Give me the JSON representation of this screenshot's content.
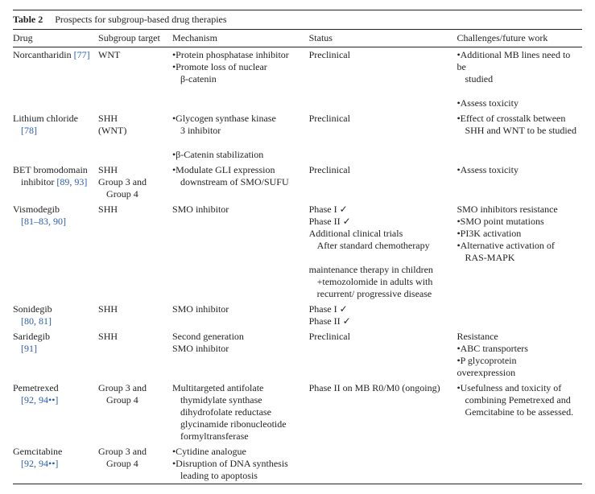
{
  "table": {
    "label": "Table 2",
    "caption": "Prospects for subgroup-based drug therapies",
    "columns": [
      "Drug",
      "Subgroup target",
      "Mechanism",
      "Status",
      "Challenges/future work"
    ],
    "rows": [
      {
        "drug_name": "Norcantharidin",
        "drug_refs": "[77]",
        "subgroup": [
          "WNT"
        ],
        "mechanism": [
          "•Protein phosphatase inhibitor",
          "•Promote loss of nuclear",
          " β-catenin"
        ],
        "status": [
          "Preclinical"
        ],
        "challenges": [
          "•Additional MB lines need to be",
          " studied",
          "•Assess toxicity"
        ]
      },
      {
        "drug_name": "Lithium chloride",
        "drug_refs": "[78]",
        "subgroup": [
          "SHH",
          "(WNT)"
        ],
        "mechanism": [
          "•Glycogen synthase kinase",
          " 3 inhibitor",
          "•β-Catenin stabilization"
        ],
        "status": [
          "Preclinical"
        ],
        "challenges": [
          "•Effect of crosstalk between",
          " SHH and WNT to be studied"
        ]
      },
      {
        "drug_name": "BET bromodomain inhibitor",
        "drug_refs": "[89, 93]",
        "subgroup": [
          "SHH",
          "Group 3 and",
          " Group 4"
        ],
        "mechanism": [
          "•Modulate GLI expression",
          " downstream of SMO/SUFU"
        ],
        "status": [
          "Preclinical"
        ],
        "challenges": [
          "•Assess toxicity"
        ]
      },
      {
        "drug_name": "Vismodegib",
        "drug_refs": "[81–83, 90]",
        "subgroup": [
          "SHH"
        ],
        "mechanism": [
          "SMO inhibitor"
        ],
        "status": [
          "Phase I ✓",
          "Phase II ✓",
          "Additional clinical trials",
          " After standard chemotherapy",
          "maintenance therapy in children",
          " +temozolomide in adults with",
          " recurrent/ progressive disease"
        ],
        "challenges": [
          "SMO inhibitors resistance",
          "•SMO point mutations",
          "•PI3K activation",
          "•Alternative activation of",
          " RAS-MAPK"
        ]
      },
      {
        "drug_name": "Sonidegib",
        "drug_refs": "[80, 81]",
        "subgroup": [
          "SHH"
        ],
        "mechanism": [
          "SMO inhibitor"
        ],
        "status": [
          "Phase I ✓",
          "Phase II ✓"
        ],
        "challenges": []
      },
      {
        "drug_name": "Saridegib",
        "drug_refs": "[91]",
        "subgroup": [
          "SHH"
        ],
        "mechanism": [
          "Second generation",
          "SMO inhibitor"
        ],
        "status": [
          "Preclinical"
        ],
        "challenges": [
          "Resistance",
          "•ABC transporters",
          "•P glycoprotein overexpression"
        ]
      },
      {
        "drug_name": "Pemetrexed",
        "drug_refs": "[92, 94••]",
        "subgroup": [
          "Group 3 and",
          " Group 4"
        ],
        "mechanism": [
          "Multitargeted antifolate",
          " thymidylate synthase",
          " dihydrofolate reductase",
          " glycinamide ribonucleotide",
          " formyltransferase"
        ],
        "status": [
          "Phase II on MB R0/M0 (ongoing)"
        ],
        "challenges": [
          "•Usefulness and toxicity of",
          " combining Pemetrexed and",
          " Gemcitabine to be assessed."
        ]
      },
      {
        "drug_name": "Gemcitabine",
        "drug_refs": "[92, 94••]",
        "subgroup": [
          "Group 3 and",
          " Group 4"
        ],
        "mechanism": [
          "•Cytidine analogue",
          "•Disruption of DNA synthesis",
          " leading to apoptosis"
        ],
        "status": [],
        "challenges": []
      }
    ]
  }
}
